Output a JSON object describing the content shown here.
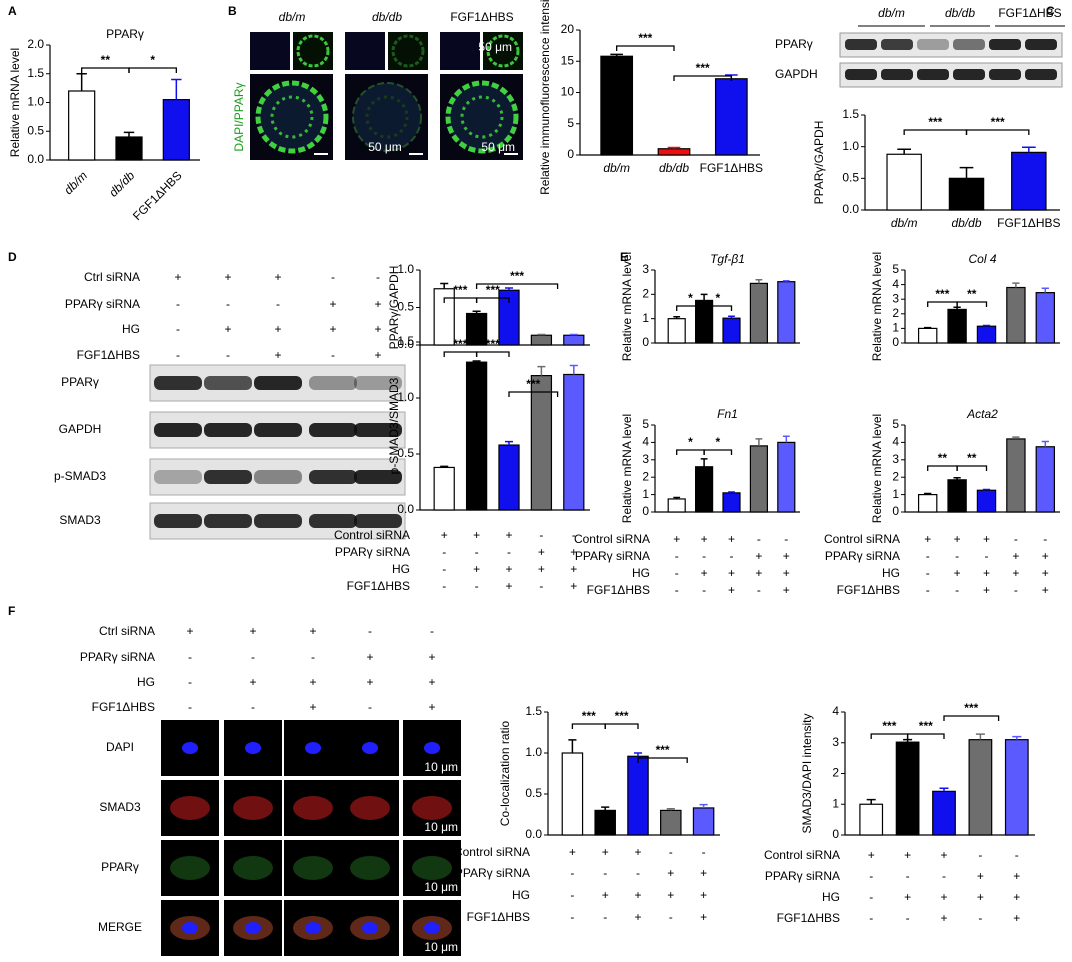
{
  "panels": {
    "labels": [
      "A",
      "B",
      "C",
      "D",
      "E",
      "F"
    ],
    "b_images": {
      "columns": [
        "db/m",
        "db/db",
        "FGF1ΔHBS"
      ],
      "stain": "DAPI/PPARγ",
      "scale": [
        "50 μm",
        "50 μm",
        "50 μm"
      ]
    },
    "c_blot": {
      "groups": [
        "db/m",
        "db/db",
        "FGF1ΔHBS"
      ],
      "rows": [
        "PPARγ",
        "GAPDH"
      ]
    },
    "d_table": [
      {
        "label": "Ctrl siRNA",
        "signs": [
          "+",
          "+",
          "+",
          "-",
          "-"
        ]
      },
      {
        "label": "PPARγ siRNA",
        "signs": [
          "-",
          "-",
          "-",
          "+",
          "+"
        ]
      },
      {
        "label": "HG",
        "signs": [
          "-",
          "+",
          "+",
          "+",
          "+"
        ]
      },
      {
        "label": "FGF1ΔHBS",
        "signs": [
          "-",
          "-",
          "+",
          "-",
          "+"
        ]
      }
    ],
    "d_blot": {
      "rows": [
        "PPARγ",
        "GAPDH",
        "p-SMAD3",
        "SMAD3"
      ]
    },
    "f_table": [
      {
        "label": "Ctrl siRNA",
        "signs": [
          "+",
          "+",
          "+",
          "-",
          "-"
        ]
      },
      {
        "label": "PPARγ siRNA",
        "signs": [
          "-",
          "-",
          "-",
          "+",
          "+"
        ]
      },
      {
        "label": "HG",
        "signs": [
          "-",
          "+",
          "+",
          "+",
          "+"
        ]
      },
      {
        "label": "FGF1ΔHBS",
        "signs": [
          "-",
          "-",
          "+",
          "-",
          "+"
        ]
      }
    ],
    "f_images": {
      "rows": [
        "DAPI",
        "SMAD3",
        "PPARγ",
        "MERGE"
      ],
      "scale": [
        "10 μm",
        "10 μm",
        "10 μm",
        "10 μm"
      ]
    }
  },
  "chart_data": [
    {
      "type": "bar",
      "title": "PPARγ",
      "ylabel": "Relative mRNA level",
      "categories": [
        "db/m",
        "db/db",
        "FGF1ΔHBS"
      ],
      "values": [
        1.2,
        0.4,
        1.05
      ],
      "errors": [
        0.3,
        0.08,
        0.35
      ],
      "colors": [
        "#ffffff",
        "#000000",
        "#1010ee"
      ],
      "ylim": [
        0,
        2
      ],
      "yticks": [
        {
          "value": 0,
          "label": "0.0"
        },
        0.5,
        {
          "value": 1,
          "label": "1.0"
        },
        1.5,
        {
          "value": 2,
          "label": "2.0"
        }
      ],
      "annotations": [
        "**",
        "*"
      ]
    },
    {
      "type": "bar",
      "ylabel": "Relative immunofluorescence intensity",
      "categories": [
        "db/m",
        "db/db",
        "FGF1ΔHBS"
      ],
      "values": [
        15.8,
        1.0,
        12.2
      ],
      "errors": [
        0.3,
        0.2,
        0.6
      ],
      "colors": [
        "#000000",
        "#ee1010",
        "#1010ee"
      ],
      "ylim": [
        0,
        20
      ],
      "yticks": [
        0,
        5,
        10,
        15,
        20
      ],
      "annotations": [
        "***",
        "***"
      ]
    },
    {
      "type": "bar",
      "ylabel": "PPARγ/GAPDH",
      "categories": [
        "db/m",
        "db/db",
        "FGF1ΔHBS"
      ],
      "values": [
        0.88,
        0.5,
        0.91
      ],
      "errors": [
        0.08,
        0.17,
        0.08
      ],
      "colors": [
        "#ffffff",
        "#000000",
        "#1010ee"
      ],
      "ylim": [
        0,
        1.5
      ],
      "yticks": [
        {
          "value": 0,
          "label": "0.0"
        },
        0.5,
        {
          "value": 1,
          "label": "1.0"
        },
        1.5
      ],
      "annotations": [
        "***",
        "***"
      ]
    },
    {
      "type": "bar",
      "ylabel": "PPARγ/GAPDH",
      "values": [
        0.75,
        0.42,
        0.73,
        0.13,
        0.13
      ],
      "errors": [
        0.07,
        0.03,
        0.03,
        0.01,
        0.01
      ],
      "colors": [
        "#ffffff",
        "#000000",
        "#1010ee",
        "#6e6e6e",
        "#5a5aff"
      ],
      "ylim": [
        0,
        1
      ],
      "yticks": [
        {
          "value": 0,
          "label": "0.0"
        },
        0.5,
        {
          "value": 1,
          "label": "1.0"
        }
      ],
      "annotations": [
        "***",
        "***",
        "***"
      ]
    },
    {
      "type": "bar",
      "ylabel": "p-SMAD3/SMAD3",
      "values": [
        0.38,
        1.32,
        0.58,
        1.2,
        1.21
      ],
      "errors": [
        0.01,
        0.01,
        0.03,
        0.08,
        0.08
      ],
      "colors": [
        "#ffffff",
        "#000000",
        "#1010ee",
        "#6e6e6e",
        "#5a5aff"
      ],
      "ylim": [
        0,
        1.5
      ],
      "yticks": [
        {
          "value": 0,
          "label": "0.0"
        },
        0.5,
        {
          "value": 1,
          "label": "1.0"
        },
        1.5
      ],
      "annotations": [
        "***",
        "***",
        "***"
      ],
      "conditions": [
        {
          "label": "Control siRNA",
          "signs": [
            "+",
            "+",
            "+",
            "-",
            "-"
          ]
        },
        {
          "label": "PPARγ siRNA",
          "signs": [
            "-",
            "-",
            "-",
            "+",
            "+"
          ]
        },
        {
          "label": "HG",
          "signs": [
            "-",
            "+",
            "+",
            "+",
            "+"
          ]
        },
        {
          "label": "FGF1ΔHBS",
          "signs": [
            "-",
            "-",
            "+",
            "-",
            "+"
          ]
        }
      ]
    },
    {
      "type": "bar",
      "title": "Tgf-β1",
      "ylabel": "Relative mRNA level",
      "values": [
        1.0,
        1.75,
        1.02,
        2.45,
        2.52
      ],
      "errors": [
        0.08,
        0.25,
        0.08,
        0.15,
        0.04
      ],
      "colors": [
        "#ffffff",
        "#000000",
        "#1010ee",
        "#6e6e6e",
        "#5a5aff"
      ],
      "ylim": [
        0,
        3
      ],
      "yticks": [
        0,
        1,
        2,
        3
      ],
      "annotations": [
        "*",
        "*"
      ]
    },
    {
      "type": "bar",
      "title": "Col 4",
      "ylabel": "Relative mRNA level",
      "values": [
        1.0,
        2.3,
        1.15,
        3.8,
        3.45
      ],
      "errors": [
        0.05,
        0.15,
        0.05,
        0.3,
        0.3
      ],
      "colors": [
        "#ffffff",
        "#000000",
        "#1010ee",
        "#6e6e6e",
        "#5a5aff"
      ],
      "ylim": [
        0,
        5
      ],
      "yticks": [
        0,
        1,
        2,
        3,
        4,
        5
      ],
      "annotations": [
        "***",
        "**"
      ]
    },
    {
      "type": "bar",
      "title": "Fn1",
      "ylabel": "Relative mRNA level",
      "values": [
        0.75,
        2.6,
        1.1,
        3.8,
        4.0
      ],
      "errors": [
        0.08,
        0.45,
        0.05,
        0.4,
        0.35
      ],
      "colors": [
        "#ffffff",
        "#000000",
        "#1010ee",
        "#6e6e6e",
        "#5a5aff"
      ],
      "ylim": [
        0,
        5
      ],
      "yticks": [
        0,
        1,
        2,
        3,
        4,
        5
      ],
      "annotations": [
        "*",
        "*"
      ],
      "conditions": [
        {
          "label": "Control siRNA",
          "signs": [
            "+",
            "+",
            "+",
            "-",
            "-"
          ]
        },
        {
          "label": "PPARγ siRNA",
          "signs": [
            "-",
            "-",
            "-",
            "+",
            "+"
          ]
        },
        {
          "label": "HG",
          "signs": [
            "-",
            "+",
            "+",
            "+",
            "+"
          ]
        },
        {
          "label": "FGF1ΔHBS",
          "signs": [
            "-",
            "-",
            "+",
            "-",
            "+"
          ]
        }
      ]
    },
    {
      "type": "bar",
      "title": "Acta2",
      "ylabel": "Relative mRNA level",
      "values": [
        1.0,
        1.85,
        1.25,
        4.2,
        3.75
      ],
      "errors": [
        0.06,
        0.12,
        0.04,
        0.1,
        0.3
      ],
      "colors": [
        "#ffffff",
        "#000000",
        "#1010ee",
        "#6e6e6e",
        "#5a5aff"
      ],
      "ylim": [
        0,
        5
      ],
      "yticks": [
        0,
        1,
        2,
        3,
        4,
        5
      ],
      "annotations": [
        "**",
        "**"
      ],
      "conditions": [
        {
          "label": "Control siRNA",
          "signs": [
            "+",
            "+",
            "+",
            "-",
            "-"
          ]
        },
        {
          "label": "PPARγ siRNA",
          "signs": [
            "-",
            "-",
            "-",
            "+",
            "+"
          ]
        },
        {
          "label": "HG",
          "signs": [
            "-",
            "+",
            "+",
            "+",
            "+"
          ]
        },
        {
          "label": "FGF1ΔHBS",
          "signs": [
            "-",
            "-",
            "+",
            "-",
            "+"
          ]
        }
      ]
    },
    {
      "type": "bar",
      "ylabel": "Co-localization ratio",
      "values": [
        1.0,
        0.3,
        0.96,
        0.3,
        0.33
      ],
      "errors": [
        0.16,
        0.04,
        0.04,
        0.02,
        0.04
      ],
      "colors": [
        "#ffffff",
        "#000000",
        "#1010ee",
        "#6e6e6e",
        "#5a5aff"
      ],
      "ylim": [
        0,
        1.5
      ],
      "yticks": [
        {
          "value": 0,
          "label": "0.0"
        },
        0.5,
        {
          "value": 1,
          "label": "1.0"
        },
        1.5
      ],
      "annotations": [
        "***",
        "***",
        "***"
      ],
      "conditions": [
        {
          "label": "Control siRNA",
          "signs": [
            "+",
            "+",
            "+",
            "-",
            "-"
          ]
        },
        {
          "label": "PPARγ siRNA",
          "signs": [
            "-",
            "-",
            "-",
            "+",
            "+"
          ]
        },
        {
          "label": "HG",
          "signs": [
            "-",
            "+",
            "+",
            "+",
            "+"
          ]
        },
        {
          "label": "FGF1ΔHBS",
          "signs": [
            "-",
            "-",
            "+",
            "-",
            "+"
          ]
        }
      ]
    },
    {
      "type": "bar",
      "ylabel": "SMAD3/DAPI intensity",
      "values": [
        1.0,
        3.02,
        1.42,
        3.1,
        3.1
      ],
      "errors": [
        0.15,
        0.08,
        0.1,
        0.18,
        0.1
      ],
      "colors": [
        "#ffffff",
        "#000000",
        "#1010ee",
        "#6e6e6e",
        "#5a5aff"
      ],
      "ylim": [
        0,
        4
      ],
      "yticks": [
        0,
        1,
        2,
        3,
        4
      ],
      "annotations": [
        "***",
        "***",
        "***"
      ],
      "conditions": [
        {
          "label": "Control siRNA",
          "signs": [
            "+",
            "+",
            "+",
            "-",
            "-"
          ]
        },
        {
          "label": "PPARγ siRNA",
          "signs": [
            "-",
            "-",
            "-",
            "+",
            "+"
          ]
        },
        {
          "label": "HG",
          "signs": [
            "-",
            "+",
            "+",
            "+",
            "+"
          ]
        },
        {
          "label": "FGF1ΔHBS",
          "signs": [
            "-",
            "-",
            "+",
            "-",
            "+"
          ]
        }
      ]
    }
  ]
}
